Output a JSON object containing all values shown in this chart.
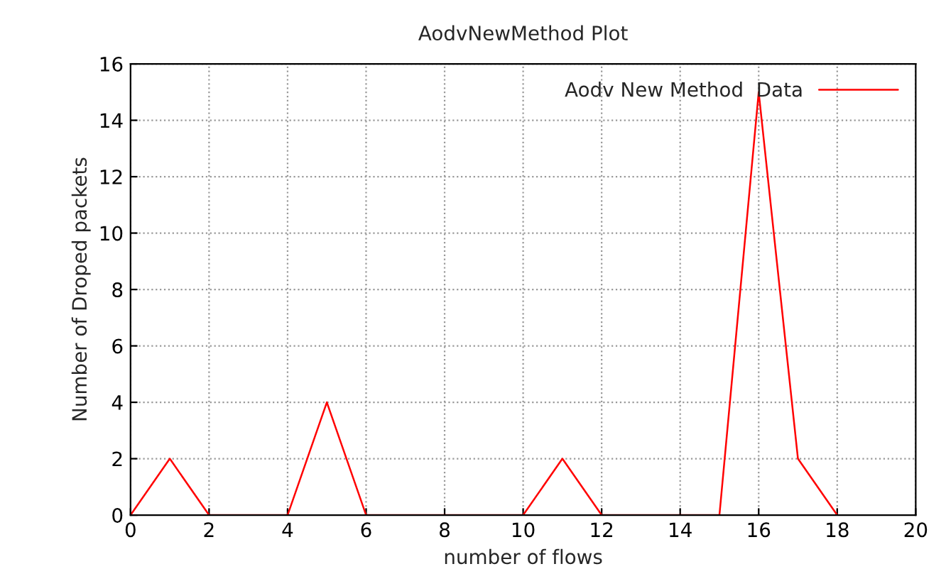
{
  "chart_data": {
    "type": "line",
    "title": "AodvNewMethod Plot",
    "xlabel": "number of flows",
    "ylabel": "Number of Droped packets",
    "x": [
      0,
      1,
      2,
      3,
      4,
      5,
      6,
      7,
      8,
      9,
      10,
      11,
      12,
      13,
      14,
      15,
      16,
      17,
      18
    ],
    "series": [
      {
        "name": "Aodv New Method  Data",
        "color": "#ff0000",
        "values": [
          0,
          2,
          0,
          0,
          0,
          4,
          0,
          0,
          0,
          0,
          0,
          2,
          0,
          0,
          0,
          0,
          15,
          2,
          0
        ]
      }
    ],
    "xlim": [
      0,
      20
    ],
    "xticks": [
      0,
      2,
      4,
      6,
      8,
      10,
      12,
      14,
      16,
      18,
      20
    ],
    "ylim": [
      0,
      16
    ],
    "yticks": [
      0,
      2,
      4,
      6,
      8,
      10,
      12,
      14,
      16
    ],
    "grid": true,
    "legend": "top right",
    "line_style": "solid"
  }
}
